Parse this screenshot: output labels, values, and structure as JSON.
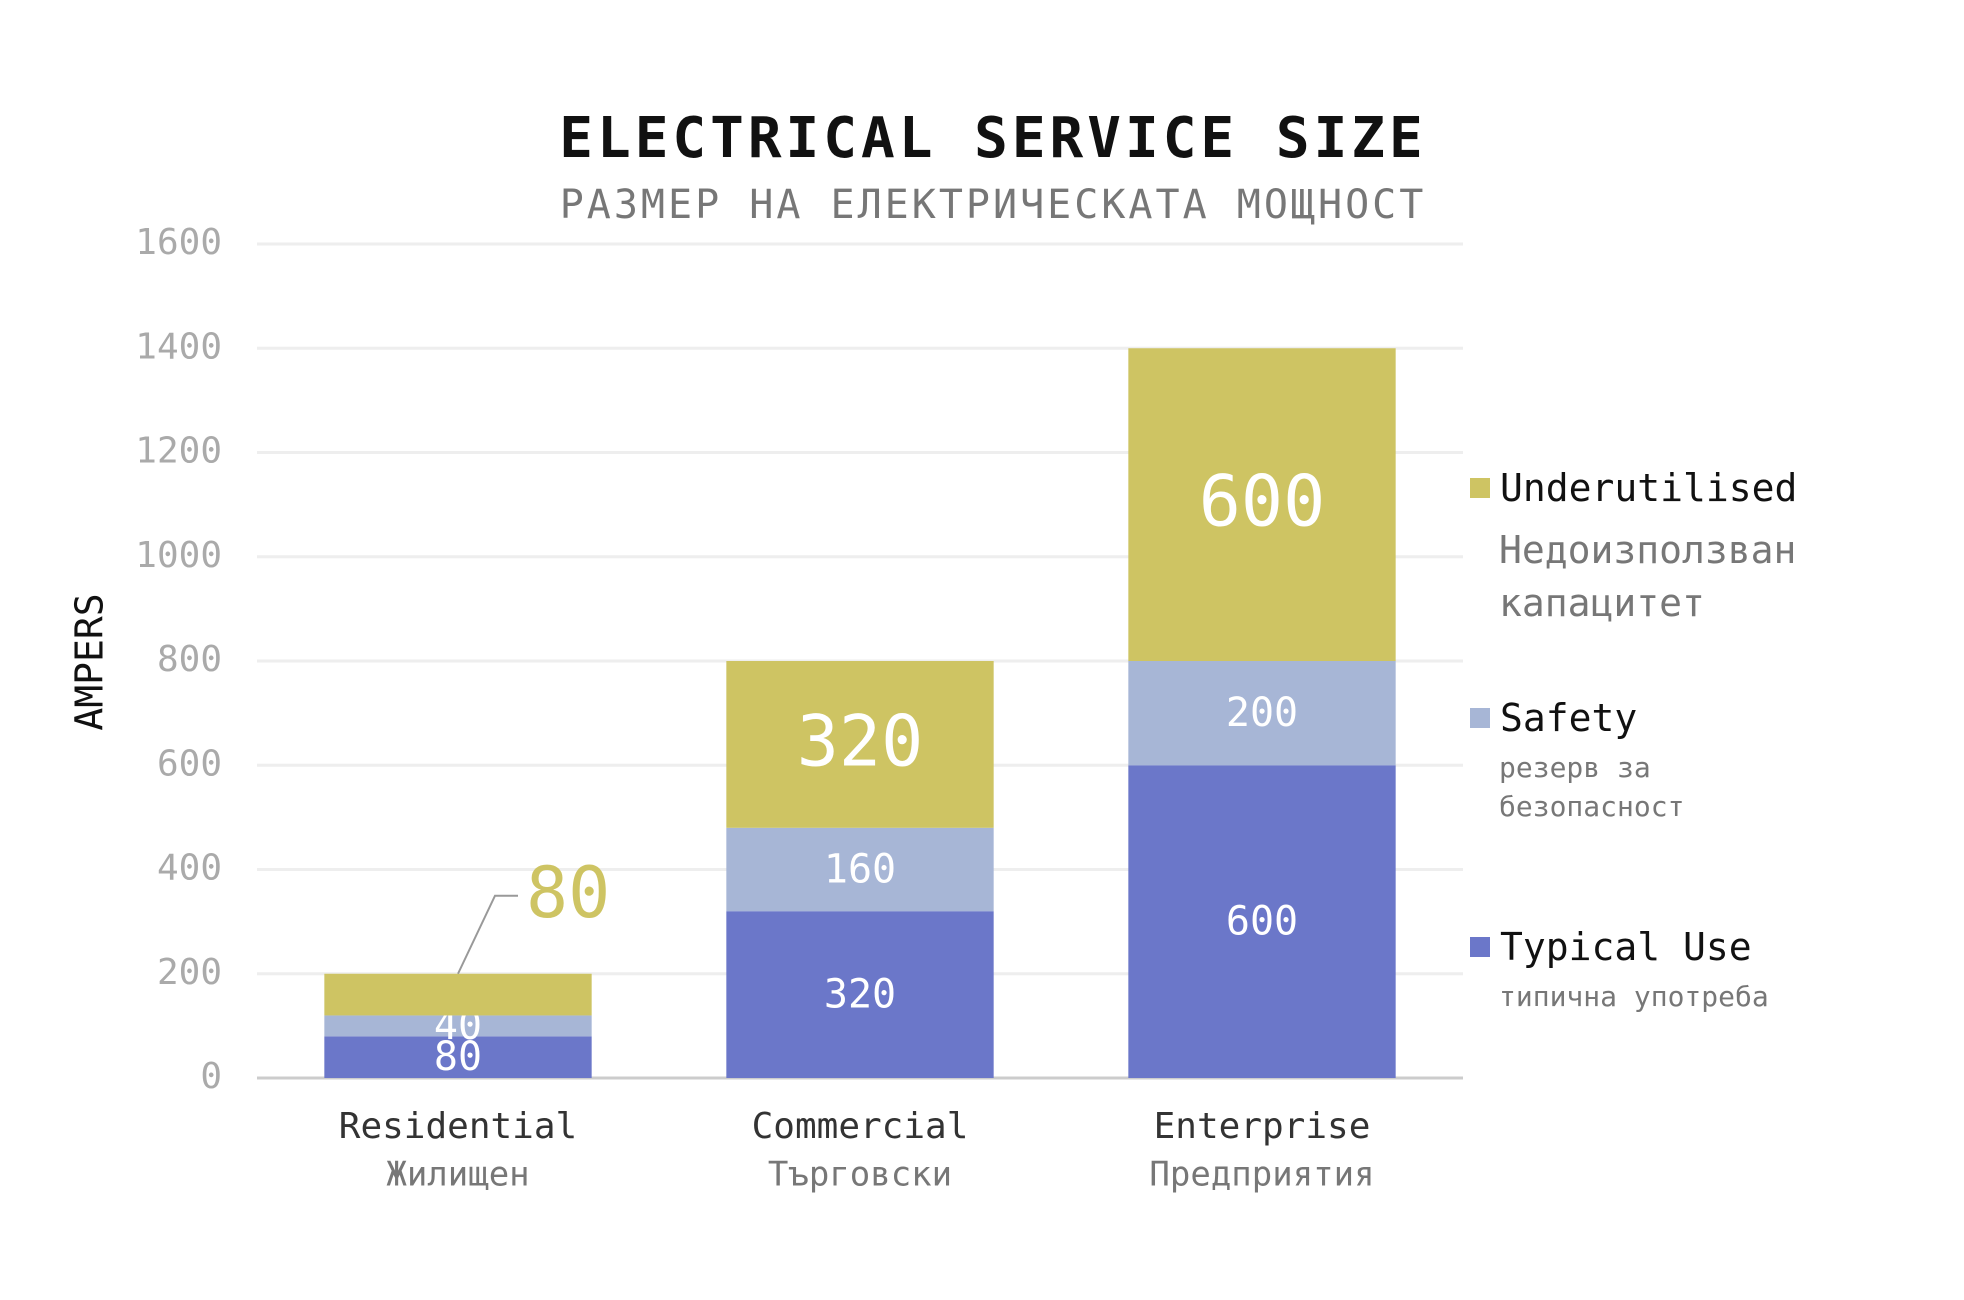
{
  "chart_data": {
    "type": "stacked_bar",
    "title": "ELECTRICAL SERVICE SIZE",
    "subtitle": "РАЗМЕР НА ЕЛЕКТРИЧЕСКАТА МОЩНОСТ",
    "y_label": "AMPERS",
    "categories": [
      "Residential",
      "Commercial",
      "Enterprise"
    ],
    "category_subtitles": [
      "Жилищен",
      "Търговски",
      "Предприятия"
    ],
    "series": [
      {
        "name": "Typical Use",
        "subtitle": "типична употреба",
        "color": "#6b77c9",
        "values": [
          80,
          320,
          600
        ]
      },
      {
        "name": "Safety",
        "subtitle": "резерв за безопасност",
        "color": "#a7b6d6",
        "values": [
          40,
          160,
          200
        ]
      },
      {
        "name": "Underutilised",
        "subtitle": "Недоизползван капацитет",
        "color": "#cec463",
        "values": [
          80,
          320,
          600
        ]
      }
    ],
    "ylim": [
      0,
      1600
    ],
    "yticks": [
      0,
      200,
      400,
      600,
      800,
      1000,
      1200,
      1400,
      1600
    ],
    "grid": true,
    "legend": "right"
  }
}
